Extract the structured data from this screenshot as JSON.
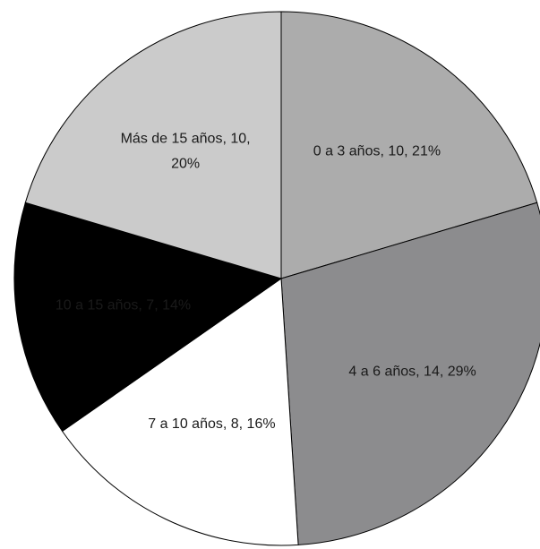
{
  "chart_data": {
    "type": "pie",
    "start_angle_deg": 90,
    "direction": "clockwise",
    "slices": [
      {
        "label_lines": [
          "0 a 3 años, 10, 21%"
        ],
        "category": "0 a 3 años",
        "value": 10,
        "percent": 21,
        "color": "#acacac",
        "label_color": "#1a1a1a"
      },
      {
        "label_lines": [
          "4 a 6 años, 14, 29%"
        ],
        "category": "4 a 6 años",
        "value": 14,
        "percent": 29,
        "color": "#8c8c8e",
        "label_color": "#1a1a1a"
      },
      {
        "label_lines": [
          "7 a 10 años, 8, 16%"
        ],
        "category": "7 a 10 años",
        "value": 8,
        "percent": 16,
        "color": "#ffffff",
        "label_color": "#1a1a1a"
      },
      {
        "label_lines": [
          "10 a 15 años, 7, 14%"
        ],
        "category": "10 a 15 años",
        "value": 7,
        "percent": 14,
        "color": "#000000",
        "label_color": "#ffffff"
      },
      {
        "label_lines": [
          "Más de 15 años, 10,",
          "20%"
        ],
        "category": "Más de 15 años",
        "value": 10,
        "percent": 20,
        "color": "#cbcbcb",
        "label_color": "#1a1a1a"
      }
    ]
  }
}
